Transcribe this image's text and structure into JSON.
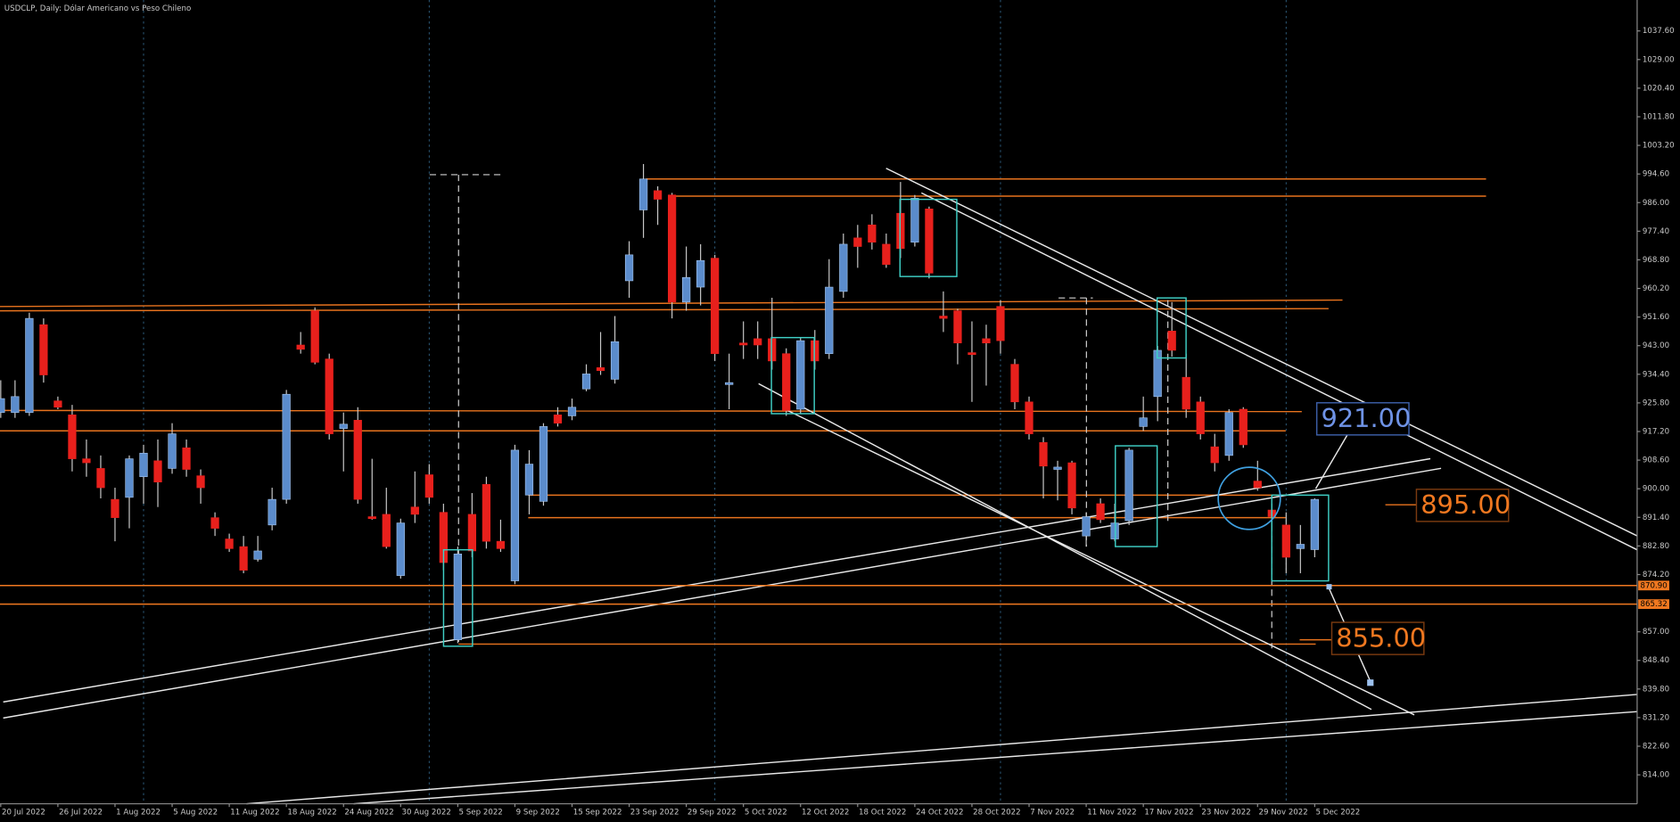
{
  "chart_data": {
    "type": "candlestick",
    "title": "USDCLP, Daily:  Dólar Americano vs Peso Chileno",
    "categories": [
      "20 Jul 2022",
      null,
      null,
      null,
      "26 Jul 2022",
      null,
      null,
      null,
      "1 Aug 2022",
      null,
      null,
      null,
      "5 Aug 2022",
      null,
      null,
      null,
      "11 Aug 2022",
      null,
      null,
      null,
      "18 Aug 2022",
      null,
      null,
      null,
      "24 Aug 2022",
      null,
      null,
      null,
      "30 Aug 2022",
      null,
      null,
      null,
      "5 Sep 2022",
      null,
      null,
      null,
      "9 Sep 2022",
      null,
      null,
      null,
      "15 Sep 2022",
      null,
      null,
      null,
      "23 Sep 2022",
      null,
      null,
      null,
      "29 Sep 2022",
      null,
      null,
      null,
      "5 Oct 2022",
      null,
      null,
      null,
      "12 Oct 2022",
      null,
      null,
      null,
      "18 Oct 2022",
      null,
      null,
      null,
      "24 Oct 2022",
      null,
      null,
      null,
      "28 Oct 2022",
      null,
      null,
      null,
      "7 Nov 2022",
      null,
      null,
      null,
      "11 Nov 2022",
      null,
      null,
      null,
      "17 Nov 2022",
      null,
      null,
      null,
      "23 Nov 2022",
      null,
      null,
      null,
      "29 Nov 2022",
      null,
      null,
      null,
      "5 Dec 2022"
    ],
    "open": [
      922.9,
      922.9,
      922.9,
      949.3,
      926.4,
      922.2,
      909.0,
      906.1,
      896.8,
      897.4,
      903.6,
      908.4,
      906.1,
      912.3,
      903.9,
      891.3,
      884.9,
      882.6,
      878.8,
      889.1,
      896.8,
      943.2,
      953.5,
      939.0,
      918.1,
      920.6,
      891.6,
      892.3,
      873.9,
      894.5,
      904.2,
      892.9,
      854.6,
      892.3,
      901.3,
      884.2,
      872.3,
      898.1,
      896.2,
      922.2,
      921.9,
      930.0,
      936.4,
      932.9,
      962.5,
      983.8,
      989.6,
      988.3,
      956.1,
      960.6,
      969.3,
      931.3,
      943.8,
      945.1,
      945.1,
      940.6,
      923.9,
      944.5,
      940.6,
      959.3,
      975.4,
      979.3,
      973.5,
      982.8,
      974.1,
      984.1,
      951.9,
      953.5,
      940.9,
      945.1,
      954.8,
      937.4,
      926.1,
      913.9,
      905.8,
      907.8,
      885.8,
      895.5,
      884.9,
      890.4,
      918.7,
      927.7,
      947.4,
      933.5,
      926.1,
      912.6,
      910.0,
      923.9,
      902.3,
      893.6,
      889.1,
      882.0,
      881.7
    ],
    "high": [
      932.6,
      932.6,
      952.9,
      951.2,
      927.7,
      925.2,
      914.8,
      910.0,
      900.3,
      910.0,
      913.2,
      914.8,
      919.7,
      914.8,
      905.8,
      892.9,
      886.5,
      885.8,
      885.8,
      900.3,
      929.7,
      947.1,
      954.5,
      940.6,
      922.9,
      924.5,
      909.0,
      900.3,
      891.0,
      905.2,
      907.4,
      895.5,
      882.6,
      898.7,
      903.6,
      890.7,
      913.2,
      911.6,
      919.7,
      924.5,
      927.1,
      937.4,
      947.1,
      951.9,
      974.4,
      997.6,
      990.9,
      988.9,
      972.8,
      973.5,
      970.3,
      940.6,
      950.3,
      950.3,
      957.4,
      942.2,
      945.5,
      947.7,
      969.0,
      976.7,
      979.3,
      982.5,
      976.7,
      992.2,
      988.3,
      984.8,
      959.3,
      954.1,
      950.3,
      949.3,
      956.7,
      939.0,
      927.7,
      915.5,
      908.4,
      908.4,
      892.9,
      897.1,
      895.5,
      912.3,
      927.7,
      942.9,
      956.1,
      940.6,
      927.7,
      916.5,
      923.9,
      924.5,
      908.4,
      895.5,
      892.9,
      889.1,
      897.1
    ],
    "low": [
      921.3,
      921.3,
      921.9,
      931.9,
      923.9,
      905.2,
      903.6,
      897.1,
      884.2,
      888.1,
      895.5,
      894.5,
      904.5,
      903.6,
      895.5,
      885.8,
      881.0,
      874.6,
      878.1,
      887.5,
      895.5,
      940.6,
      937.4,
      914.8,
      905.2,
      895.5,
      890.7,
      882.0,
      873.0,
      889.7,
      895.5,
      875.5,
      853.6,
      879.4,
      882.0,
      881.0,
      871.3,
      892.3,
      894.9,
      918.7,
      920.6,
      929.3,
      934.2,
      931.6,
      957.4,
      975.4,
      979.3,
      951.2,
      953.5,
      955.1,
      938.4,
      923.9,
      939.0,
      939.0,
      935.8,
      921.9,
      922.6,
      935.8,
      939.0,
      957.4,
      966.4,
      971.9,
      966.4,
      969.3,
      972.8,
      963.2,
      947.1,
      937.4,
      926.1,
      931.0,
      940.6,
      923.9,
      914.8,
      897.1,
      896.5,
      892.3,
      882.6,
      889.7,
      884.2,
      889.1,
      917.4,
      920.3,
      939.7,
      921.3,
      914.8,
      905.2,
      908.4,
      912.3,
      899.4,
      887.5,
      874.6,
      874.6,
      879.4
    ],
    "close": [
      927.1,
      927.7,
      951.2,
      934.2,
      924.5,
      909.0,
      907.8,
      900.3,
      891.3,
      909.0,
      910.7,
      902.0,
      916.5,
      905.8,
      900.3,
      888.1,
      882.0,
      875.5,
      881.3,
      896.8,
      928.4,
      941.9,
      938.0,
      916.5,
      919.4,
      896.8,
      891.0,
      882.6,
      889.7,
      892.3,
      897.4,
      877.8,
      880.4,
      881.3,
      884.2,
      882.0,
      911.6,
      907.4,
      918.7,
      919.7,
      924.5,
      934.5,
      935.5,
      944.2,
      970.3,
      993.1,
      987.0,
      956.1,
      963.5,
      968.6,
      940.6,
      931.9,
      943.2,
      943.2,
      938.4,
      923.5,
      944.5,
      938.4,
      960.6,
      973.5,
      972.8,
      974.1,
      967.4,
      972.2,
      987.3,
      964.8,
      951.2,
      943.8,
      940.3,
      943.8,
      944.5,
      926.1,
      916.5,
      906.8,
      906.5,
      894.2,
      891.6,
      890.7,
      889.7,
      911.6,
      921.3,
      941.6,
      941.6,
      923.9,
      916.5,
      907.8,
      922.9,
      913.2,
      900.3,
      891.6,
      879.4,
      883.3,
      896.8
    ],
    "up_color": "#5b8ccc",
    "down_color": "#e8201c",
    "wick_color": "#c8c8c8",
    "ylim": [
      805.3,
      1046.9
    ],
    "yticks": [
      {
        "value": 814,
        "label": "814.00"
      },
      {
        "value": 822.6,
        "label": "822.60"
      },
      {
        "value": 831.2,
        "label": "831.20"
      },
      {
        "value": 839.8,
        "label": "839.80"
      },
      {
        "value": 848.4,
        "label": "848.40"
      },
      {
        "value": 857,
        "label": "857.00"
      },
      {
        "value": 874.2,
        "label": "874.20"
      },
      {
        "value": 882.8,
        "label": "882.80"
      },
      {
        "value": 891.4,
        "label": "891.40"
      },
      {
        "value": 900,
        "label": "900.00"
      },
      {
        "value": 908.6,
        "label": "908.60"
      },
      {
        "value": 917.2,
        "label": "917.20"
      },
      {
        "value": 925.8,
        "label": "925.80"
      },
      {
        "value": 934.4,
        "label": "934.40"
      },
      {
        "value": 943,
        "label": "943.00"
      },
      {
        "value": 951.6,
        "label": "951.60"
      },
      {
        "value": 960.2,
        "label": "960.20"
      },
      {
        "value": 968.8,
        "label": "968.80"
      },
      {
        "value": 977.4,
        "label": "977.40"
      },
      {
        "value": 986,
        "label": "986.00"
      },
      {
        "value": 994.6,
        "label": "994.60"
      },
      {
        "value": 1003.2,
        "label": "1003.20"
      },
      {
        "value": 1011.8,
        "label": "1011.80"
      },
      {
        "value": 1020.4,
        "label": "1020.40"
      },
      {
        "value": 1029,
        "label": "1029.00"
      },
      {
        "value": 1037.6,
        "label": "1037.60"
      }
    ],
    "price_lines": [
      {
        "value": 870.9,
        "label": "870.90",
        "color": "#f07820"
      },
      {
        "value": 865.32,
        "label": "865.32",
        "color": "#f07820"
      }
    ],
    "annotations": [
      {
        "value": 921,
        "label": "921.00",
        "color": "#6f93e6"
      },
      {
        "value": 895,
        "label": "895.00",
        "color": "#f07820"
      },
      {
        "value": 855,
        "label": "855.00",
        "color": "#f07820"
      }
    ]
  }
}
